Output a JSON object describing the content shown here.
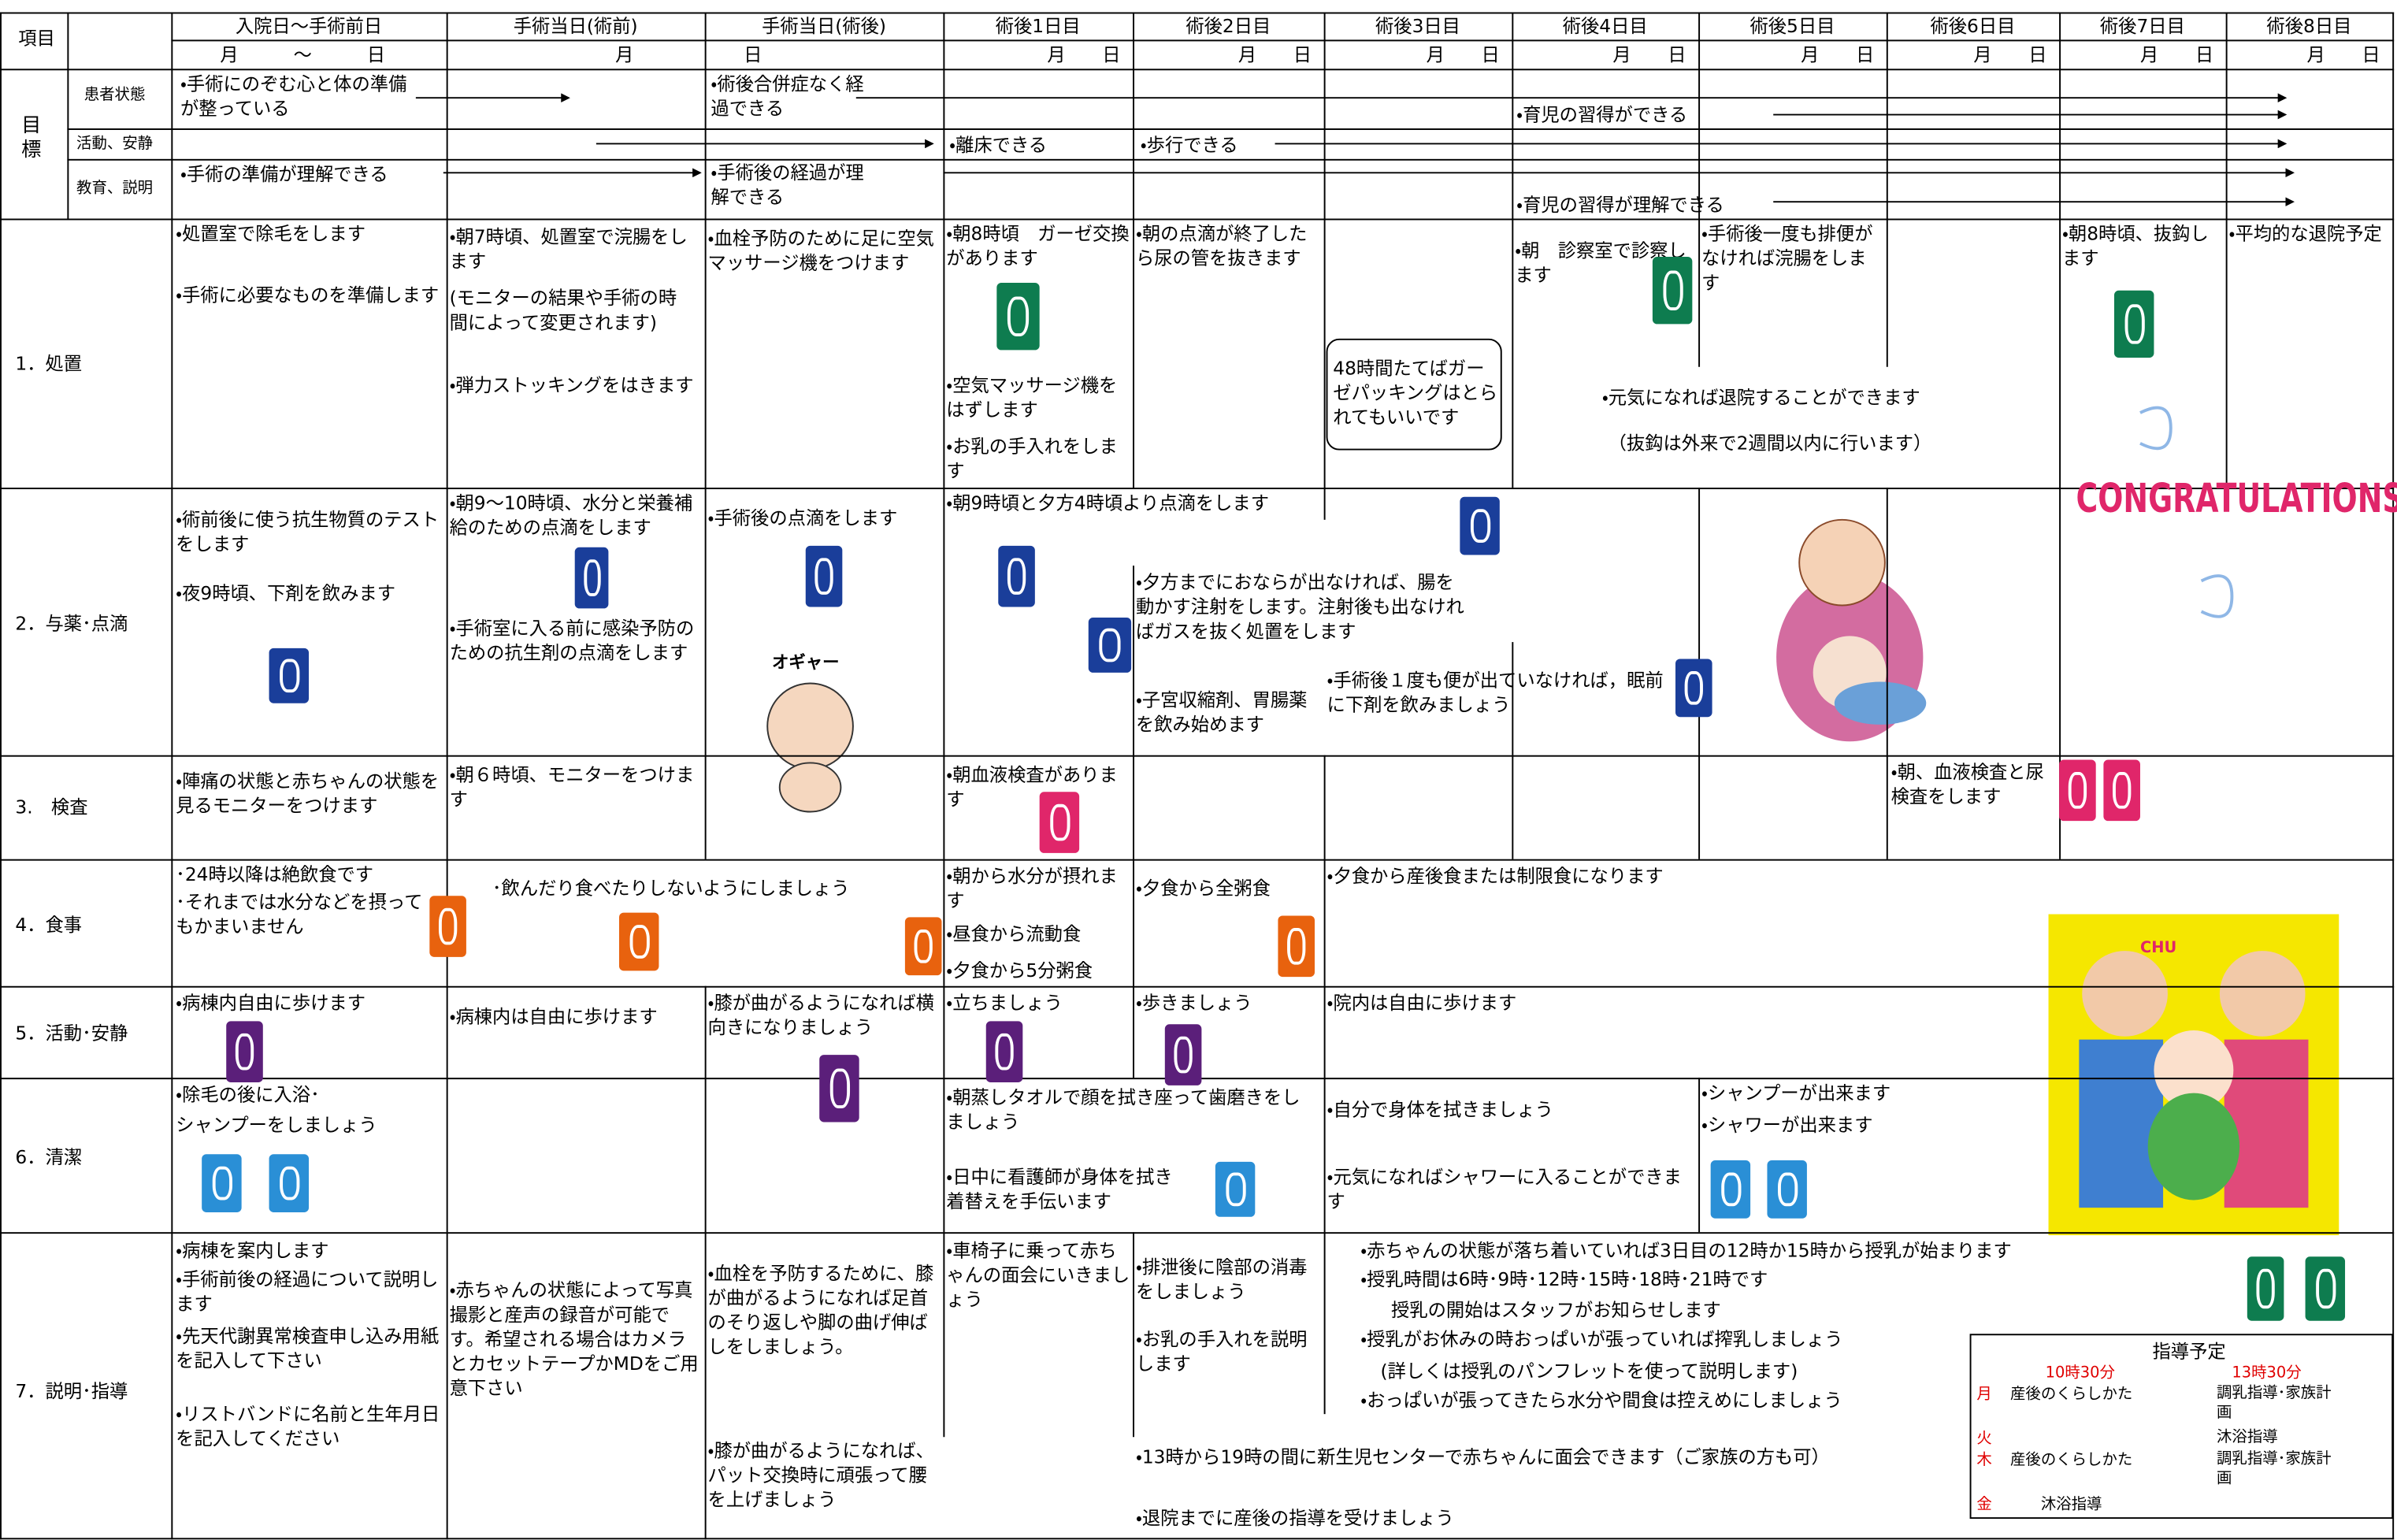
{
  "header": {
    "item": "項目",
    "columns": [
      "入院日～手術前日",
      "手術当日(術前)",
      "手術当日(術後)",
      "術後1日目",
      "術後2日目",
      "術後3日目",
      "術後4日目",
      "術後5日目",
      "術後6日目",
      "術後7日目",
      "術後8日目"
    ],
    "dates": [
      "月　　　～　　　日",
      "月　　　　　　日",
      "月　　日",
      "月　　日",
      "月　　日",
      "月　　日",
      "月　　日",
      "月　　日",
      "月　　日",
      "月　　日"
    ]
  },
  "goals": {
    "label": "目標",
    "rows": [
      "患者状態",
      "活動、安静",
      "教育、説明"
    ],
    "patient": [
      "・手術にのぞむ心と体の準備が整っている",
      "・術後合併症なく経過できる",
      "・育児の習得ができる"
    ],
    "activity": [
      "・離床できる",
      "・歩行できる"
    ],
    "education": [
      "・手術の準備が理解できる",
      "・手術後の経過が理解できる",
      "・育児の習得が理解できる"
    ]
  },
  "rows": [
    {
      "label": "1．処置",
      "texts": [
        "・処置室で除毛をします",
        "・手術に必要なものを準備します",
        "・朝7時頃、処置室で浣腸をします",
        "(モニターの結果や手術の時間によって変更されます)",
        "・弾力ストッキングをはきます",
        "・血栓予防のために足に空気マッサージ機をつけます",
        "・朝8時頃　ガーゼ交換があります",
        "・空気マッサージ機をはずします",
        "・お乳の手入れをします",
        "・朝の点滴が終了したら尿の管を抜きます",
        "48時間たてばガーゼパッキングはとられてもいいです",
        "・朝　診察室で診察します",
        "・手術後一度も排便がなければ浣腸をします",
        "・元気になれば退院することができます",
        "（抜鈎は外来で2週間以内に行います）",
        "・朝8時頃、抜鈎します",
        "・平均的な退院予定"
      ]
    },
    {
      "label": "2．与薬･点滴",
      "texts": [
        "・術前後に使う抗生物質のテストをします",
        "・夜9時頃、下剤を飲みます",
        "・朝9～10時頃、水分と栄養補給のための点滴をします",
        "・手術室に入る前に感染予防のための抗生剤の点滴をします",
        "・手術後の点滴をします",
        "・朝9時頃と夕方4時頃より点滴をします",
        "・夕方までにおならが出なければ、腸を動かす注射をします。注射後も出なければガスを抜く処置をします",
        "・子宮収縮剤、胃腸薬を飲み始めます",
        "・手術後１度も便が出ていなければ，眠前に下剤を飲みましょう",
        "オギャー",
        "CONGRATULATIONS!"
      ]
    },
    {
      "label": "3.　検査",
      "texts": [
        "・陣痛の状態と赤ちゃんの状態を見るモニターをつけます",
        "・朝６時頃、モニターをつけます",
        "・朝血液検査があります",
        "・朝、血液検査と尿検査をします"
      ]
    },
    {
      "label": "4．食事",
      "texts": [
        "･24時以降は絶飲食です",
        "･それまでは水分などを摂ってもかまいません",
        "･飲んだり食べたりしないようにしましょう",
        "・朝から水分が摂れます",
        "・昼食から流動食",
        "・夕食から5分粥食",
        "・夕食から全粥食",
        "・夕食から産後食または制限食になります"
      ]
    },
    {
      "label": "5．活動･安静",
      "texts": [
        "・病棟内自由に歩けます",
        "・病棟内は自由に歩けます",
        "・膝が曲がるようになれば横向きになりましょう",
        "・立ちましょう",
        "・歩きましょう",
        "・院内は自由に歩けます"
      ]
    },
    {
      "label": "6．清潔",
      "texts": [
        "・除毛の後に入浴･",
        "シャンプーをしましょう",
        "・朝蒸しタオルで顔を拭き座って歯磨きをしましょう",
        "・日中に看護師が身体を拭き着替えを手伝います",
        "・自分で身体を拭きましょう",
        "・元気になればシャワーに入ることができます",
        "・シャンプーが出来ます",
        "・シャワーが出来ます",
        "CHU"
      ]
    },
    {
      "label": "7．説明･指導",
      "texts": [
        "・病棟を案内します",
        "・手術前後の経過について説明します",
        "・先天代謝異常検査申し込み用紙を記入して下さい",
        "・リストバンドに名前と生年月日を記入してください",
        "・赤ちゃんの状態によって写真撮影と産声の録音が可能です。希望される場合はカメラとカセットテープかMDをご用意下さい",
        "・血栓を予防するために、膝が曲がるようになれば足首のそり返しや脚の曲げ伸ばしをしましょう。",
        "・膝が曲がるようになれば、パット交換時に頑張って腰を上げましょう",
        "・車椅子に乗って赤ちゃんの面会にいきましょう",
        "・排泄後に陰部の消毒をしましょう",
        "・お乳の手入れを説明します",
        "・赤ちゃんの状態が落ち着いていれば3日目の12時か15時から授乳が始まります",
        "・授乳時間は6時･9時･12時･15時･18時･21時です",
        "授乳の開始はスタッフがお知らせします",
        "・授乳がお休みの時おっぱいが張っていれば搾乳しましょう",
        "(詳しくは授乳のパンフレットを使って説明します)",
        "・おっぱいが張ってきたら水分や間食は控えめにしましょう",
        "・13時から19時の間に新生児センターで赤ちゃんに面会できます（ご家族の方も可）",
        "・退院までに産後の指導を受けましょう"
      ]
    }
  ],
  "schedule": {
    "title": "指導予定",
    "times": [
      "10時30分",
      "13時30分"
    ],
    "days": [
      {
        "day": "月",
        "am": "産後のくらしかた",
        "pm": "調乳指導･家族計画"
      },
      {
        "day": "火",
        "pm": "沐浴指導"
      },
      {
        "day": "木",
        "am": "産後のくらしかた",
        "pm": "調乳指導･家族計画"
      },
      {
        "day": "金",
        "am": "沐浴指導"
      }
    ]
  }
}
